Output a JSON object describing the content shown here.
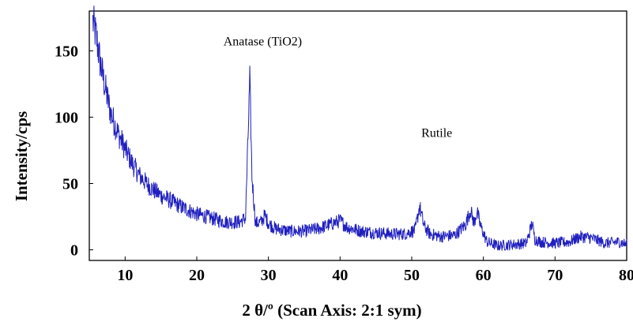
{
  "chart_data": {
    "type": "line",
    "title": "",
    "xlabel": "2 θ/º (Scan Axis: 2:1 sym)",
    "ylabel": "Intensity/cps",
    "xlim": [
      5,
      80
    ],
    "ylim": [
      -8,
      180
    ],
    "grid": false,
    "legend": "none",
    "x_ticks": [
      "10",
      "20",
      "30",
      "40",
      "50",
      "60",
      "70",
      "80"
    ],
    "y_ticks": [
      "0",
      "50",
      "100",
      "150"
    ],
    "series_color": "#1f1fbf",
    "series": [
      {
        "x": [
          5.5,
          6,
          6.5,
          7,
          7.5,
          8,
          9,
          10,
          11,
          12,
          13,
          14,
          15,
          16,
          18,
          20,
          22,
          24,
          25,
          26,
          26.8,
          27.1,
          27.4,
          27.7,
          28.2,
          29,
          29.5,
          30,
          31,
          33,
          35,
          37,
          39,
          40,
          41,
          43,
          45,
          47,
          49,
          50.5,
          51.1,
          51.7,
          52.5,
          54,
          56,
          57.5,
          58.2,
          58.7,
          59.1,
          59.6,
          60.5,
          62,
          64,
          66,
          66.8,
          67.2,
          68,
          70,
          72,
          73.5,
          75,
          77,
          79,
          80
        ],
        "y": [
          172,
          160,
          142,
          128,
          115,
          103,
          88,
          76,
          65,
          56,
          50,
          45,
          41,
          38,
          32,
          27,
          24,
          21,
          21,
          21,
          24,
          75,
          128,
          55,
          20,
          21,
          26,
          20,
          16,
          14,
          14,
          16,
          20,
          22,
          17,
          14,
          13,
          12,
          12,
          15,
          33,
          18,
          12,
          10,
          11,
          19,
          30,
          20,
          29,
          18,
          6,
          3,
          4,
          5,
          20,
          8,
          6,
          5,
          6,
          10,
          9,
          5,
          6,
          4
        ]
      }
    ],
    "annotations": [
      {
        "text": "Anatase (TiO2)",
        "x": 29.2,
        "y": 154
      },
      {
        "text": "Rutile",
        "x": 53.5,
        "y": 85
      }
    ]
  }
}
